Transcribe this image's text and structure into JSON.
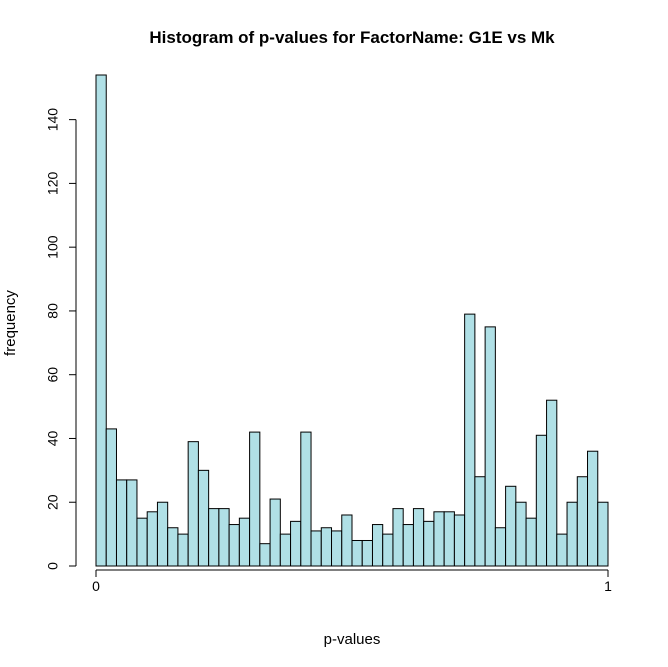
{
  "chart_data": {
    "type": "bar",
    "title": "Histogram of p-values for FactorName: G1E vs Mk",
    "xlabel": "p-values",
    "ylabel": "frequency",
    "xlim": [
      0,
      1
    ],
    "ylim": [
      0,
      154
    ],
    "x_ticks": [
      0,
      1
    ],
    "y_ticks": [
      0,
      20,
      40,
      60,
      80,
      100,
      120,
      140
    ],
    "bin_width": 0.02,
    "bar_color": "#b0e0e6",
    "values": [
      154,
      43,
      27,
      27,
      15,
      17,
      20,
      12,
      10,
      39,
      30,
      18,
      18,
      13,
      15,
      42,
      7,
      21,
      10,
      14,
      42,
      11,
      12,
      11,
      16,
      8,
      8,
      13,
      10,
      18,
      13,
      18,
      14,
      17,
      17,
      16,
      79,
      28,
      75,
      12,
      25,
      20,
      15,
      41,
      52,
      10,
      20,
      28,
      36,
      20
    ]
  }
}
